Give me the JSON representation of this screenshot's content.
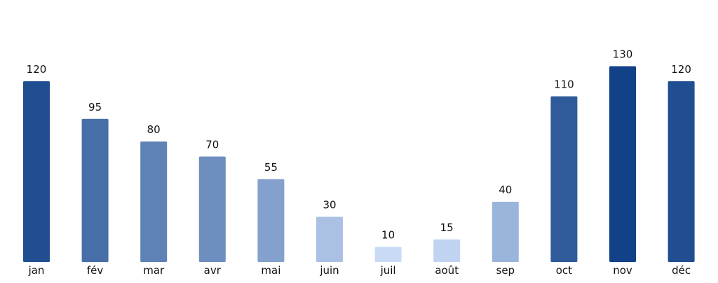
{
  "chart_data": {
    "type": "bar",
    "title": "",
    "xlabel": "",
    "ylabel": "",
    "categories": [
      "jan",
      "fév",
      "mar",
      "avr",
      "mai",
      "juin",
      "juil",
      "août",
      "sep",
      "oct",
      "nov",
      "déc"
    ],
    "values": [
      120,
      95,
      80,
      70,
      55,
      30,
      10,
      15,
      40,
      110,
      130,
      120
    ],
    "ylim": [
      0,
      130
    ],
    "grid": false,
    "legend": "none",
    "data_labels": true,
    "color_scale": {
      "low": "#c8daf6",
      "high": "#124188"
    }
  }
}
